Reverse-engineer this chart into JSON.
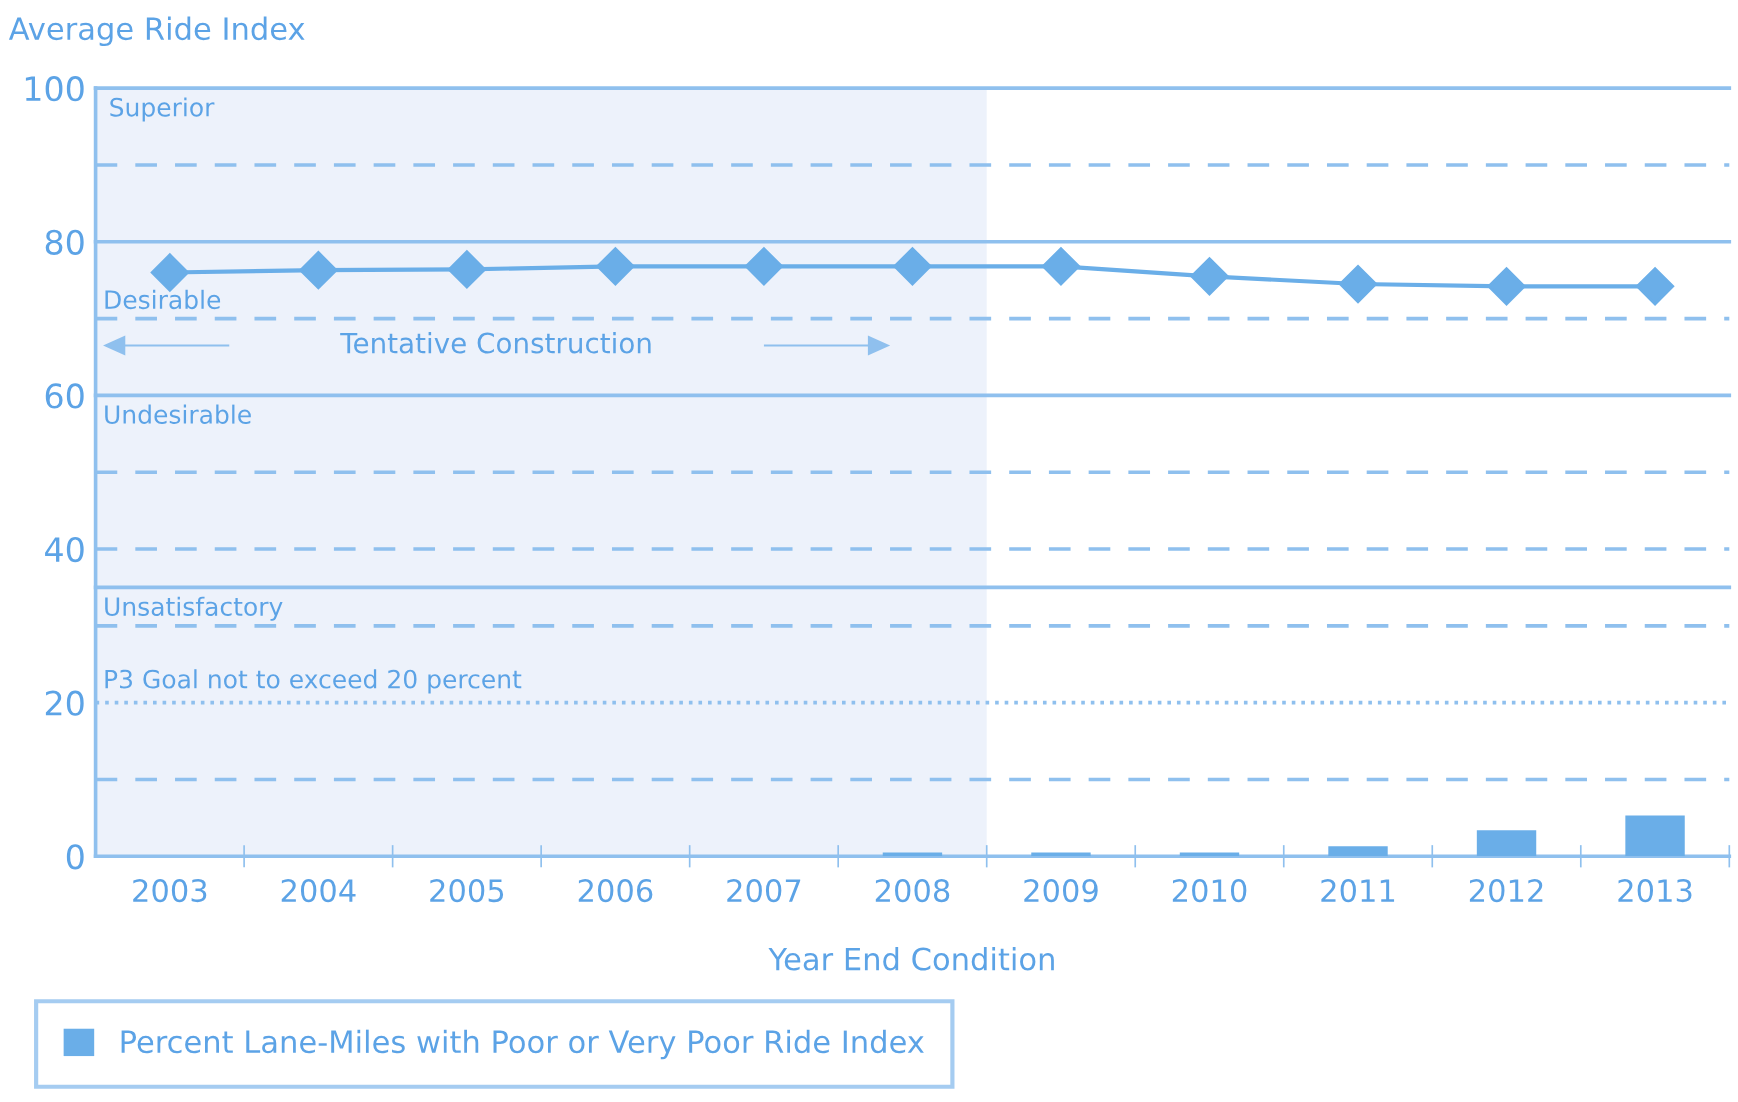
{
  "chart_data": {
    "type": "bar",
    "ylabel": "Average Ride Index",
    "xlabel": "Year End Condition",
    "categories": [
      "2003",
      "2004",
      "2005",
      "2006",
      "2007",
      "2008",
      "2009",
      "2010",
      "2011",
      "2012",
      "2013"
    ],
    "series": [
      {
        "name": "Percent Lane-Miles with Poor or Very Poor Ride Index",
        "color": "#6aaee8",
        "values": [
          0,
          0,
          0,
          0,
          0,
          0.5,
          0.5,
          0.5,
          1.3,
          3.4,
          5.3
        ]
      },
      {
        "type": "line",
        "color": "#6aaee8",
        "marker": "diamond",
        "line_style": "solid",
        "values": [
          76.0,
          76.3,
          76.4,
          76.8,
          76.8,
          76.8,
          76.8,
          75.5,
          74.5,
          74.2,
          74.2
        ]
      }
    ],
    "ylim": [
      0,
      100
    ],
    "yticks": [
      0,
      20,
      40,
      60,
      80,
      100
    ],
    "ref_lines": [
      {
        "axis": "y",
        "value": 90,
        "line_style": "dashed"
      },
      {
        "axis": "y",
        "value": 80,
        "label": "Desirable",
        "line_style": "solid"
      },
      {
        "axis": "y",
        "value": 70,
        "line_style": "dashed"
      },
      {
        "axis": "y",
        "value": 60,
        "label": "Undesirable",
        "line_style": "solid"
      },
      {
        "axis": "y",
        "value": 50,
        "line_style": "dashed"
      },
      {
        "axis": "y",
        "value": 40,
        "line_style": "dashed"
      },
      {
        "axis": "y",
        "value": 35,
        "label": "Unsatisfactory",
        "line_style": "solid"
      },
      {
        "axis": "y",
        "value": 30,
        "line_style": "dashed"
      },
      {
        "axis": "y",
        "value": 20,
        "label": "P3 Goal not to exceed 20 percent",
        "line_style": "dotted"
      },
      {
        "axis": "y",
        "value": 10,
        "line_style": "dashed"
      }
    ],
    "bands": [
      {
        "axis": "x",
        "from": "2003",
        "to": "2008",
        "color": "#edf2fb"
      }
    ],
    "annotations": [
      "Tentative Construction",
      "Superior"
    ],
    "grid": false,
    "legend": "bottom"
  }
}
